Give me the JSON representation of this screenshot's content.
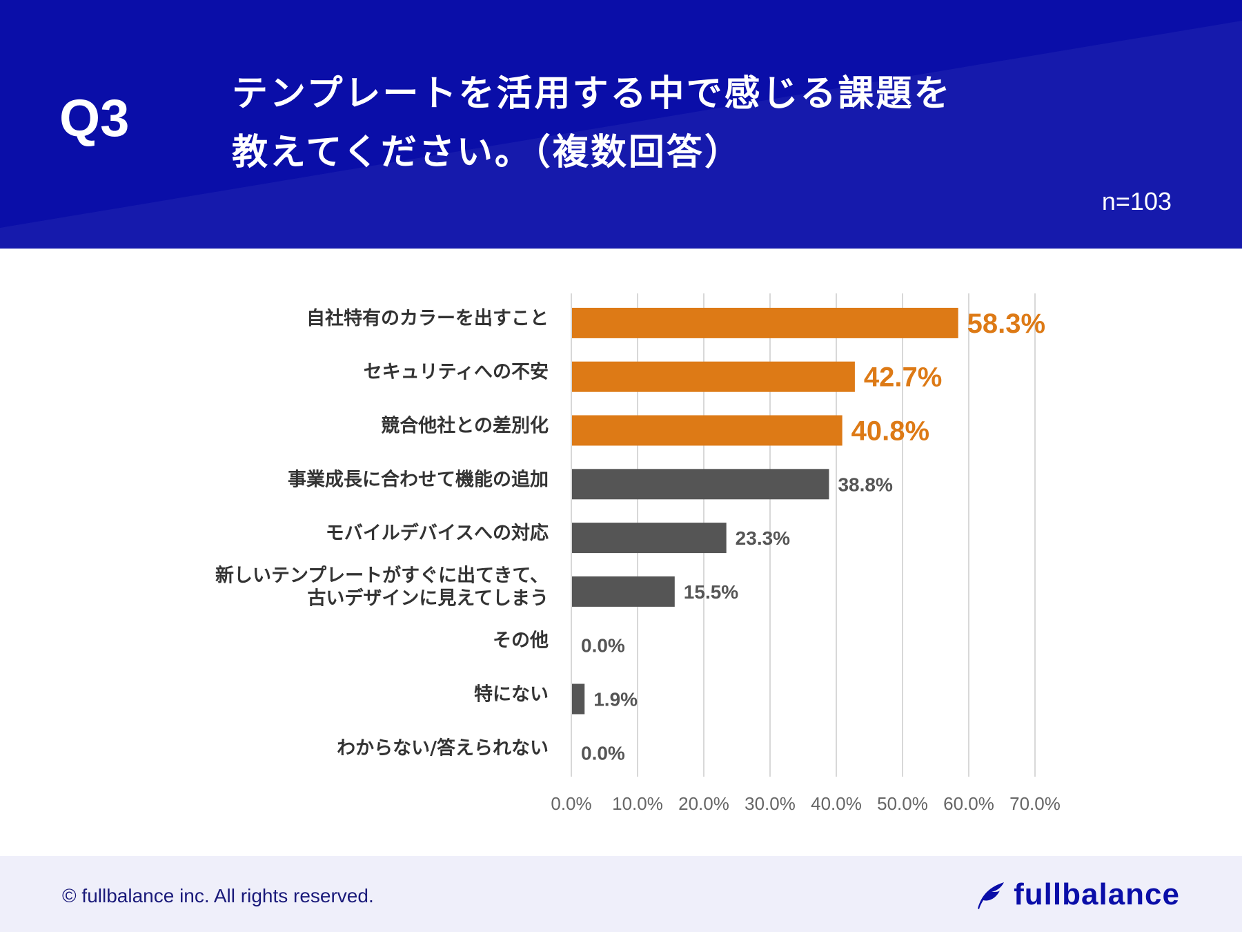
{
  "header": {
    "question_number": "Q3",
    "title_line_1": "テンプレートを活用する中で感じる課題を",
    "title_line_2": "教えてください。（複数回答）",
    "sample_size": "n=103"
  },
  "chart_data": {
    "type": "bar",
    "orientation": "horizontal",
    "title": "テンプレートを活用する中で感じる課題を教えてください。（複数回答）",
    "categories": [
      [
        "自社特有のカラーを出すこと"
      ],
      [
        "セキュリティへの不安"
      ],
      [
        "競合他社との差別化"
      ],
      [
        "事業成長に合わせて機能の追加"
      ],
      [
        "モバイルデバイスへの対応"
      ],
      [
        "新しいテンプレートがすぐに出てきて、",
        "古いデザインに見えてしまう"
      ],
      [
        "その他"
      ],
      [
        "特にない"
      ],
      [
        "わからない/答えられない"
      ]
    ],
    "values": [
      58.3,
      42.7,
      40.8,
      38.8,
      23.3,
      15.5,
      0.0,
      1.9,
      0.0
    ],
    "value_labels": [
      "58.3%",
      "42.7%",
      "40.8%",
      "38.8%",
      "23.3%",
      "15.5%",
      "0.0%",
      "1.9%",
      "0.0%"
    ],
    "highlighted": [
      true,
      true,
      true,
      false,
      false,
      false,
      false,
      false,
      false
    ],
    "xlim": [
      0,
      70
    ],
    "x_ticks": [
      0,
      10,
      20,
      30,
      40,
      50,
      60,
      70
    ],
    "x_tick_labels": [
      "0.0%",
      "10.0%",
      "20.0%",
      "30.0%",
      "40.0%",
      "50.0%",
      "60.0%",
      "70.0%"
    ],
    "grid": true,
    "colors": {
      "highlight": "#dd7a16",
      "normal": "#555555",
      "grid": "#cccccc"
    }
  },
  "footer": {
    "copyright": "© fullbalance inc. All rights reserved.",
    "brand": "fullbalance"
  },
  "colors": {
    "header_bg": "#0a0ea8",
    "footer_bg": "#efeffa"
  }
}
